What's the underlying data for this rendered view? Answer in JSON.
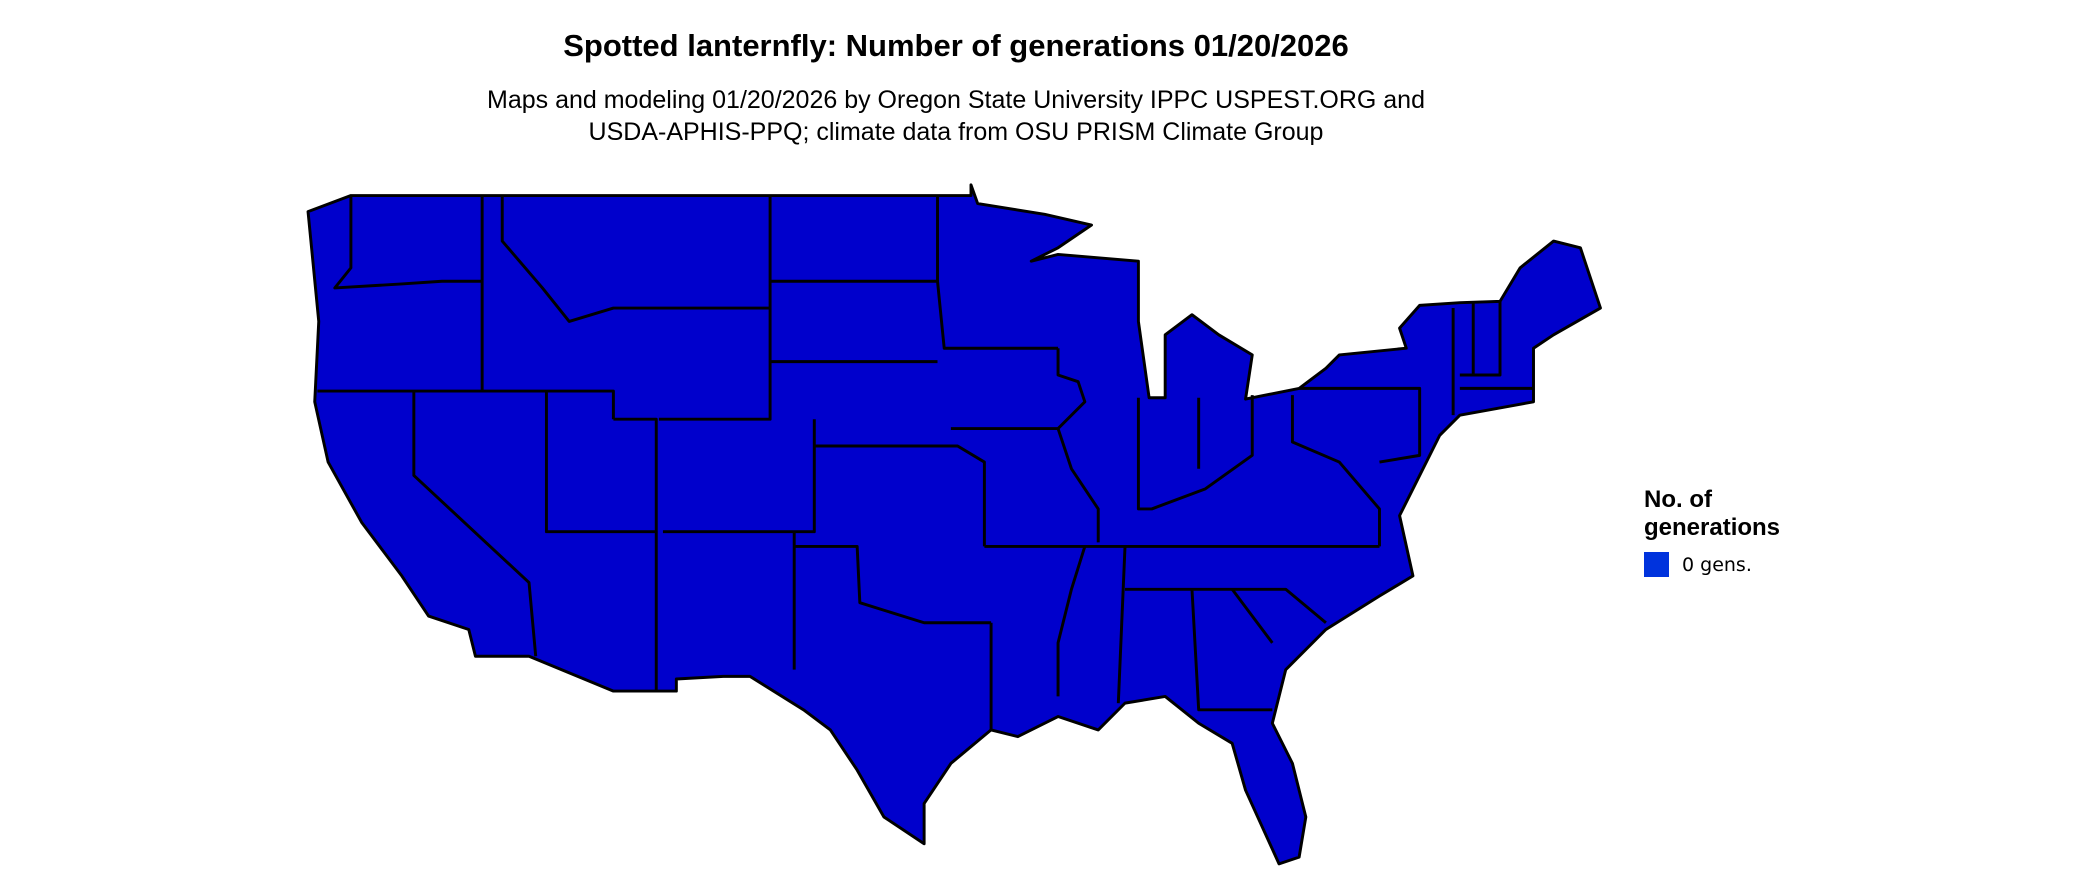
{
  "title": "Spotted lanternfly: Number of generations 01/20/2026",
  "subtitle_line1": "Maps and modeling 01/20/2026 by Oregon State University IPPC USPEST.ORG and",
  "subtitle_line2": "USDA-APHIS-PPQ; climate data from OSU PRISM Climate Group",
  "map": {
    "region": "Contiguous United States",
    "fill_color": "#0000CC",
    "border_color": "#000000",
    "value_everywhere": "0 gens."
  },
  "legend": {
    "title": "No. of generations",
    "items": [
      {
        "label": "0 gens.",
        "color": "#0033DD"
      }
    ]
  }
}
